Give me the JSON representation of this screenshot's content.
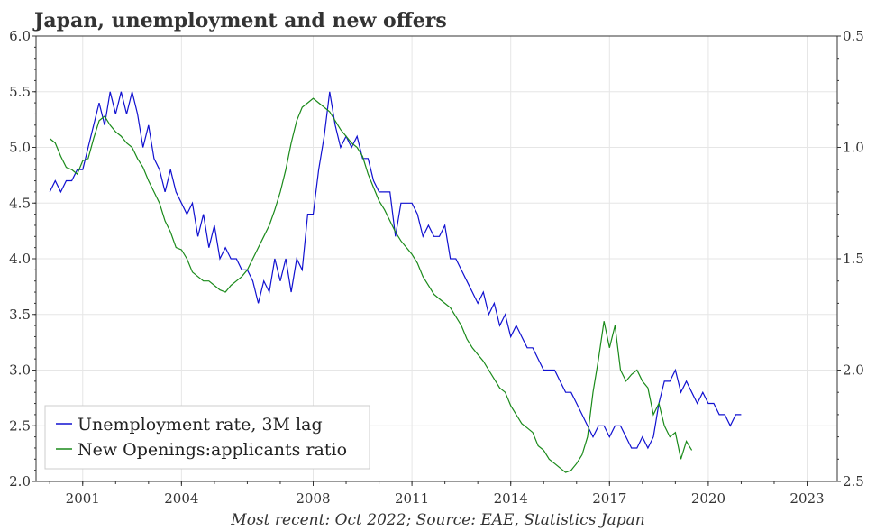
{
  "chart_data": {
    "type": "line",
    "title": "Japan, unemployment and new offers",
    "caption": "Most recent: Oct 2022; Source: EAE, Statistics Japan",
    "x_ticks": [
      "2001",
      "2004",
      "2008",
      "2011",
      "2014",
      "2017",
      "2020",
      "2023"
    ],
    "x_range": [
      "1999-08",
      "2023-12"
    ],
    "left_axis": {
      "ticks": [
        "2.0",
        "2.5",
        "3.0",
        "3.5",
        "4.0",
        "4.5",
        "5.0",
        "5.5",
        "6.0"
      ],
      "ylim": [
        2.0,
        6.0
      ]
    },
    "right_axis": {
      "ticks": [
        "0.5",
        "1.0",
        "1.5",
        "2.0",
        "2.5"
      ],
      "ylim": [
        0.5,
        2.5
      ],
      "inverted": true
    },
    "legend_position": "bottom-left",
    "grid": true,
    "colors": {
      "unemployment": "#1010d0",
      "openings": "#1a8a1a",
      "axis": "#333333"
    },
    "series": [
      {
        "name": "Unemployment rate, 3M lag",
        "axis": "left",
        "points": [
          [
            "2000-01",
            4.6
          ],
          [
            "2000-03",
            4.7
          ],
          [
            "2000-05",
            4.6
          ],
          [
            "2000-07",
            4.7
          ],
          [
            "2000-09",
            4.7
          ],
          [
            "2000-11",
            4.8
          ],
          [
            "2001-01",
            4.8
          ],
          [
            "2001-03",
            5.0
          ],
          [
            "2001-05",
            5.2
          ],
          [
            "2001-07",
            5.4
          ],
          [
            "2001-09",
            5.2
          ],
          [
            "2001-11",
            5.5
          ],
          [
            "2002-01",
            5.3
          ],
          [
            "2002-03",
            5.5
          ],
          [
            "2002-05",
            5.3
          ],
          [
            "2002-07",
            5.5
          ],
          [
            "2002-09",
            5.3
          ],
          [
            "2002-11",
            5.0
          ],
          [
            "2003-01",
            5.2
          ],
          [
            "2003-03",
            4.9
          ],
          [
            "2003-05",
            4.8
          ],
          [
            "2003-07",
            4.6
          ],
          [
            "2003-09",
            4.8
          ],
          [
            "2003-11",
            4.6
          ],
          [
            "2004-01",
            4.5
          ],
          [
            "2004-03",
            4.4
          ],
          [
            "2004-05",
            4.5
          ],
          [
            "2004-07",
            4.2
          ],
          [
            "2004-09",
            4.4
          ],
          [
            "2004-11",
            4.1
          ],
          [
            "2005-01",
            4.3
          ],
          [
            "2005-03",
            4.0
          ],
          [
            "2005-05",
            4.1
          ],
          [
            "2005-07",
            4.0
          ],
          [
            "2005-09",
            4.0
          ],
          [
            "2005-11",
            3.9
          ],
          [
            "2006-01",
            3.9
          ],
          [
            "2006-03",
            3.8
          ],
          [
            "2006-05",
            3.6
          ],
          [
            "2006-07",
            3.8
          ],
          [
            "2006-09",
            3.7
          ],
          [
            "2006-11",
            4.0
          ],
          [
            "2007-01",
            3.8
          ],
          [
            "2007-03",
            4.0
          ],
          [
            "2007-05",
            3.7
          ],
          [
            "2007-07",
            4.0
          ],
          [
            "2007-09",
            3.9
          ],
          [
            "2007-11",
            4.4
          ],
          [
            "2008-01",
            4.4
          ],
          [
            "2008-03",
            4.8
          ],
          [
            "2008-05",
            5.1
          ],
          [
            "2008-07",
            5.5
          ],
          [
            "2008-09",
            5.2
          ],
          [
            "2008-11",
            5.0
          ],
          [
            "2009-01",
            5.1
          ],
          [
            "2009-03",
            5.0
          ],
          [
            "2009-05",
            5.1
          ],
          [
            "2009-07",
            4.9
          ],
          [
            "2009-09",
            4.9
          ],
          [
            "2009-11",
            4.7
          ],
          [
            "2010-01",
            4.6
          ],
          [
            "2010-03",
            4.6
          ],
          [
            "2010-05",
            4.6
          ],
          [
            "2010-07",
            4.2
          ],
          [
            "2010-09",
            4.5
          ],
          [
            "2010-11",
            4.5
          ],
          [
            "2011-01",
            4.5
          ],
          [
            "2011-03",
            4.4
          ],
          [
            "2011-05",
            4.2
          ],
          [
            "2011-07",
            4.3
          ],
          [
            "2011-09",
            4.2
          ],
          [
            "2011-11",
            4.2
          ],
          [
            "2012-01",
            4.3
          ],
          [
            "2012-03",
            4.0
          ],
          [
            "2012-05",
            4.0
          ],
          [
            "2012-07",
            3.9
          ],
          [
            "2012-09",
            3.8
          ],
          [
            "2012-11",
            3.7
          ],
          [
            "2013-01",
            3.6
          ],
          [
            "2013-03",
            3.7
          ],
          [
            "2013-05",
            3.5
          ],
          [
            "2013-07",
            3.6
          ],
          [
            "2013-09",
            3.4
          ],
          [
            "2013-11",
            3.5
          ],
          [
            "2014-01",
            3.3
          ],
          [
            "2014-03",
            3.4
          ],
          [
            "2014-05",
            3.3
          ],
          [
            "2014-07",
            3.2
          ],
          [
            "2014-09",
            3.2
          ],
          [
            "2014-11",
            3.1
          ],
          [
            "2015-01",
            3.0
          ],
          [
            "2015-03",
            3.0
          ],
          [
            "2015-05",
            3.0
          ],
          [
            "2015-07",
            2.9
          ],
          [
            "2015-09",
            2.8
          ],
          [
            "2015-11",
            2.8
          ],
          [
            "2016-01",
            2.7
          ],
          [
            "2016-03",
            2.6
          ],
          [
            "2016-05",
            2.5
          ],
          [
            "2016-07",
            2.4
          ],
          [
            "2016-09",
            2.5
          ],
          [
            "2016-11",
            2.5
          ],
          [
            "2017-01",
            2.4
          ],
          [
            "2017-03",
            2.5
          ],
          [
            "2017-05",
            2.5
          ],
          [
            "2017-07",
            2.4
          ],
          [
            "2017-09",
            2.3
          ],
          [
            "2017-11",
            2.3
          ],
          [
            "2018-01",
            2.4
          ],
          [
            "2018-03",
            2.3
          ],
          [
            "2018-05",
            2.4
          ],
          [
            "2018-07",
            2.7
          ],
          [
            "2018-09",
            2.9
          ],
          [
            "2018-11",
            2.9
          ],
          [
            "2019-01",
            3.0
          ],
          [
            "2019-03",
            2.8
          ],
          [
            "2019-05",
            2.9
          ],
          [
            "2019-07",
            2.8
          ],
          [
            "2019-09",
            2.7
          ],
          [
            "2019-11",
            2.8
          ],
          [
            "2020-01",
            2.7
          ],
          [
            "2020-03",
            2.7
          ],
          [
            "2020-05",
            2.6
          ],
          [
            "2020-07",
            2.6
          ],
          [
            "2020-09",
            2.5
          ],
          [
            "2020-11",
            2.6
          ],
          [
            "2021-01",
            2.6
          ]
        ]
      },
      {
        "name": "New Openings:applicants ratio",
        "axis": "right",
        "points": [
          [
            "2000-01",
            0.96
          ],
          [
            "2000-03",
            0.98
          ],
          [
            "2000-05",
            1.04
          ],
          [
            "2000-07",
            1.09
          ],
          [
            "2000-09",
            1.1
          ],
          [
            "2000-11",
            1.12
          ],
          [
            "2001-01",
            1.06
          ],
          [
            "2001-03",
            1.05
          ],
          [
            "2001-05",
            0.96
          ],
          [
            "2001-07",
            0.88
          ],
          [
            "2001-09",
            0.86
          ],
          [
            "2001-11",
            0.9
          ],
          [
            "2002-01",
            0.93
          ],
          [
            "2002-03",
            0.95
          ],
          [
            "2002-05",
            0.98
          ],
          [
            "2002-07",
            1.0
          ],
          [
            "2002-09",
            1.05
          ],
          [
            "2002-11",
            1.09
          ],
          [
            "2003-01",
            1.15
          ],
          [
            "2003-03",
            1.2
          ],
          [
            "2003-05",
            1.25
          ],
          [
            "2003-07",
            1.33
          ],
          [
            "2003-09",
            1.38
          ],
          [
            "2003-11",
            1.45
          ],
          [
            "2004-01",
            1.46
          ],
          [
            "2004-03",
            1.5
          ],
          [
            "2004-05",
            1.56
          ],
          [
            "2004-07",
            1.58
          ],
          [
            "2004-09",
            1.6
          ],
          [
            "2004-11",
            1.6
          ],
          [
            "2005-01",
            1.62
          ],
          [
            "2005-03",
            1.64
          ],
          [
            "2005-05",
            1.65
          ],
          [
            "2005-07",
            1.62
          ],
          [
            "2005-09",
            1.6
          ],
          [
            "2005-11",
            1.58
          ],
          [
            "2006-01",
            1.55
          ],
          [
            "2006-03",
            1.5
          ],
          [
            "2006-05",
            1.45
          ],
          [
            "2006-07",
            1.4
          ],
          [
            "2006-09",
            1.35
          ],
          [
            "2006-11",
            1.28
          ],
          [
            "2007-01",
            1.2
          ],
          [
            "2007-03",
            1.1
          ],
          [
            "2007-05",
            0.98
          ],
          [
            "2007-07",
            0.88
          ],
          [
            "2007-09",
            0.82
          ],
          [
            "2007-11",
            0.8
          ],
          [
            "2008-01",
            0.78
          ],
          [
            "2008-03",
            0.8
          ],
          [
            "2008-05",
            0.82
          ],
          [
            "2008-07",
            0.84
          ],
          [
            "2008-09",
            0.88
          ],
          [
            "2008-11",
            0.92
          ],
          [
            "2009-01",
            0.95
          ],
          [
            "2009-03",
            0.98
          ],
          [
            "2009-05",
            1.0
          ],
          [
            "2009-07",
            1.04
          ],
          [
            "2009-09",
            1.12
          ],
          [
            "2009-11",
            1.18
          ],
          [
            "2010-01",
            1.24
          ],
          [
            "2010-03",
            1.28
          ],
          [
            "2010-05",
            1.33
          ],
          [
            "2010-07",
            1.38
          ],
          [
            "2010-09",
            1.42
          ],
          [
            "2010-11",
            1.45
          ],
          [
            "2011-01",
            1.48
          ],
          [
            "2011-03",
            1.52
          ],
          [
            "2011-05",
            1.58
          ],
          [
            "2011-07",
            1.62
          ],
          [
            "2011-09",
            1.66
          ],
          [
            "2011-11",
            1.68
          ],
          [
            "2012-01",
            1.7
          ],
          [
            "2012-03",
            1.72
          ],
          [
            "2012-05",
            1.76
          ],
          [
            "2012-07",
            1.8
          ],
          [
            "2012-09",
            1.86
          ],
          [
            "2012-11",
            1.9
          ],
          [
            "2013-01",
            1.93
          ],
          [
            "2013-03",
            1.96
          ],
          [
            "2013-05",
            2.0
          ],
          [
            "2013-07",
            2.04
          ],
          [
            "2013-09",
            2.08
          ],
          [
            "2013-11",
            2.1
          ],
          [
            "2014-01",
            2.16
          ],
          [
            "2014-03",
            2.2
          ],
          [
            "2014-05",
            2.24
          ],
          [
            "2014-07",
            2.26
          ],
          [
            "2014-09",
            2.28
          ],
          [
            "2014-11",
            2.34
          ],
          [
            "2015-01",
            2.36
          ],
          [
            "2015-03",
            2.4
          ],
          [
            "2015-05",
            2.42
          ],
          [
            "2015-07",
            2.44
          ],
          [
            "2015-09",
            2.46
          ],
          [
            "2015-11",
            2.45
          ],
          [
            "2016-01",
            2.42
          ],
          [
            "2016-03",
            2.38
          ],
          [
            "2016-05",
            2.3
          ],
          [
            "2016-07",
            2.1
          ],
          [
            "2016-09",
            1.95
          ],
          [
            "2016-11",
            1.78
          ],
          [
            "2017-01",
            1.9
          ],
          [
            "2017-03",
            1.8
          ],
          [
            "2017-05",
            2.0
          ],
          [
            "2017-07",
            2.05
          ],
          [
            "2017-09",
            2.02
          ],
          [
            "2017-11",
            2.0
          ],
          [
            "2018-01",
            2.05
          ],
          [
            "2018-03",
            2.08
          ],
          [
            "2018-05",
            2.2
          ],
          [
            "2018-07",
            2.15
          ],
          [
            "2018-09",
            2.25
          ],
          [
            "2018-11",
            2.3
          ],
          [
            "2019-01",
            2.28
          ],
          [
            "2019-03",
            2.4
          ],
          [
            "2019-05",
            2.32
          ],
          [
            "2019-07",
            2.36
          ]
        ]
      }
    ]
  }
}
